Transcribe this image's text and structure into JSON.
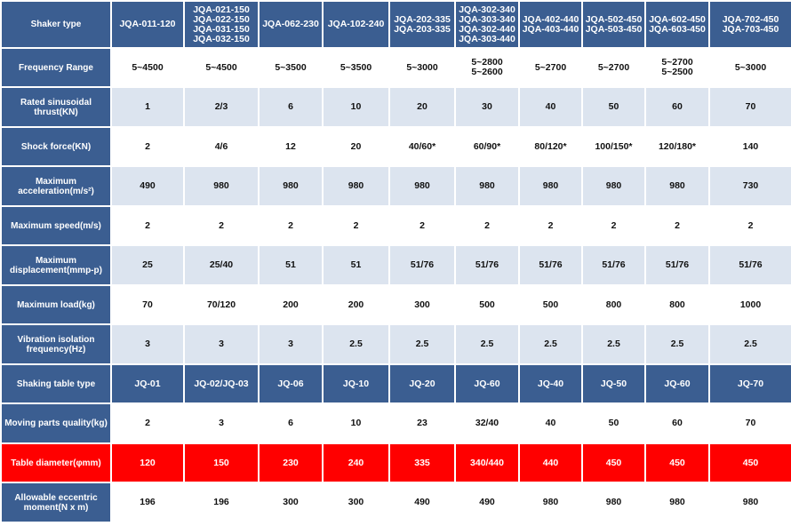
{
  "colors": {
    "header_blue": "#3b5e91",
    "light_blue": "#dce4ef",
    "highlight_red": "#ff0000",
    "white": "#ffffff"
  },
  "table": {
    "header": {
      "label": "Shaker type",
      "cells": [
        "JQA-011-120",
        "JQA-021-150\nJQA-022-150\nJQA-031-150\nJQA-032-150",
        "JQA-062-230",
        "JQA-102-240",
        "JQA-202-335\nJQA-203-335",
        "JQA-302-340\nJQA-303-340\nJQA-302-440\nJQA-303-440",
        "JQA-402-440\nJQA-403-440",
        "JQA-502-450\nJQA-503-450",
        "JQA-602-450\nJQA-603-450",
        "JQA-702-450\nJQA-703-450"
      ]
    },
    "rows": [
      {
        "label": "Frequency Range",
        "style": "white",
        "cells": [
          "5~4500",
          "5~4500",
          "5~3500",
          "5~3500",
          "5~3000",
          "5~2800\n5~2600",
          "5~2700",
          "5~2700",
          "5~2700\n5~2500",
          "5~3000"
        ]
      },
      {
        "label": "Rated sinusoidal\nthrust(KN)",
        "style": "blue",
        "cells": [
          "1",
          "2/3",
          "6",
          "10",
          "20",
          "30",
          "40",
          "50",
          "60",
          "70"
        ]
      },
      {
        "label": "Shock force(KN)",
        "style": "white",
        "cells": [
          "2",
          "4/6",
          "12",
          "20",
          "40/60*",
          "60/90*",
          "80/120*",
          "100/150*",
          "120/180*",
          "140"
        ]
      },
      {
        "label": "Maximum\nacceleration(m/s²)",
        "style": "blue",
        "cells": [
          "490",
          "980",
          "980",
          "980",
          "980",
          "980",
          "980",
          "980",
          "980",
          "730"
        ]
      },
      {
        "label": "Maximum speed(m/s)",
        "style": "white",
        "cells": [
          "2",
          "2",
          "2",
          "2",
          "2",
          "2",
          "2",
          "2",
          "2",
          "2"
        ]
      },
      {
        "label": "Maximum\ndisplacement(mmp-p)",
        "style": "blue",
        "cells": [
          "25",
          "25/40",
          "51",
          "51",
          "51/76",
          "51/76",
          "51/76",
          "51/76",
          "51/76",
          "51/76"
        ]
      },
      {
        "label": "Maximum load(kg)",
        "style": "white",
        "cells": [
          "70",
          "70/120",
          "200",
          "200",
          "300",
          "500",
          "500",
          "800",
          "800",
          "1000"
        ]
      },
      {
        "label": "Vibration isolation\nfrequency(Hz)",
        "style": "blue",
        "cells": [
          "3",
          "3",
          "3",
          "2.5",
          "2.5",
          "2.5",
          "2.5",
          "2.5",
          "2.5",
          "2.5"
        ]
      },
      {
        "label": "Shaking table type",
        "style": "header",
        "cells": [
          "JQ-01",
          "JQ-02/JQ-03",
          "JQ-06",
          "JQ-10",
          "JQ-20",
          "JQ-60",
          "JQ-40",
          "JQ-50",
          "JQ-60",
          "JQ-70"
        ]
      },
      {
        "label": "Moving parts quality(kg)",
        "style": "white",
        "cells": [
          "2",
          "3",
          "6",
          "10",
          "23",
          "32/40",
          "40",
          "50",
          "60",
          "70"
        ]
      },
      {
        "label": "Table diameter(φmm)",
        "style": "red",
        "cells": [
          "120",
          "150",
          "230",
          "240",
          "335",
          "340/440",
          "440",
          "450",
          "450",
          "450"
        ]
      },
      {
        "label": "Allowable eccentric\nmoment(N x m)",
        "style": "white",
        "cells": [
          "196",
          "196",
          "300",
          "300",
          "490",
          "490",
          "980",
          "980",
          "980",
          "980"
        ]
      }
    ]
  }
}
